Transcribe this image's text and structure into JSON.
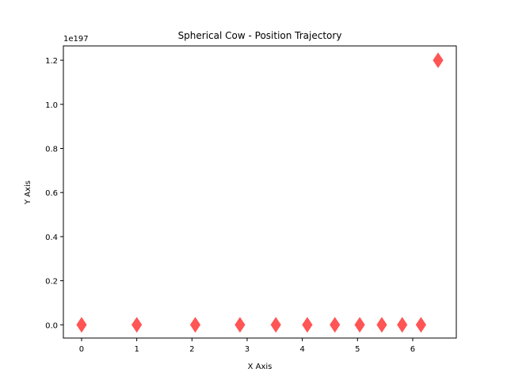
{
  "chart_data": {
    "type": "scatter",
    "title": "Spherical Cow - Position Trajectory",
    "xlabel": "X Axis",
    "ylabel": "Y Axis",
    "y_offset_label": "1e197",
    "marker": "diamond",
    "color": "#ff5555",
    "xlim": [
      -0.33,
      6.79
    ],
    "ylim": [
      -0.06,
      1.265
    ],
    "x_ticks": [
      0,
      1,
      2,
      3,
      4,
      5,
      6
    ],
    "x_tick_labels": [
      "0",
      "1",
      "2",
      "3",
      "4",
      "5",
      "6"
    ],
    "y_ticks": [
      0.0,
      0.2,
      0.4,
      0.6,
      0.8,
      1.0,
      1.2
    ],
    "y_tick_labels": [
      "0.0",
      "0.2",
      "0.4",
      "0.6",
      "0.8",
      "1.0",
      "1.2"
    ],
    "grid": false,
    "points": [
      {
        "x": 0.0,
        "y": 0.0
      },
      {
        "x": 1.0,
        "y": 0.0
      },
      {
        "x": 2.06,
        "y": 0.0
      },
      {
        "x": 2.87,
        "y": 0.0
      },
      {
        "x": 3.52,
        "y": 0.0
      },
      {
        "x": 4.09,
        "y": 0.0
      },
      {
        "x": 4.59,
        "y": 0.0
      },
      {
        "x": 5.04,
        "y": 0.0
      },
      {
        "x": 5.44,
        "y": 0.0
      },
      {
        "x": 5.81,
        "y": 0.0
      },
      {
        "x": 6.15,
        "y": 0.0
      },
      {
        "x": 6.46,
        "y": 1.2
      }
    ]
  }
}
